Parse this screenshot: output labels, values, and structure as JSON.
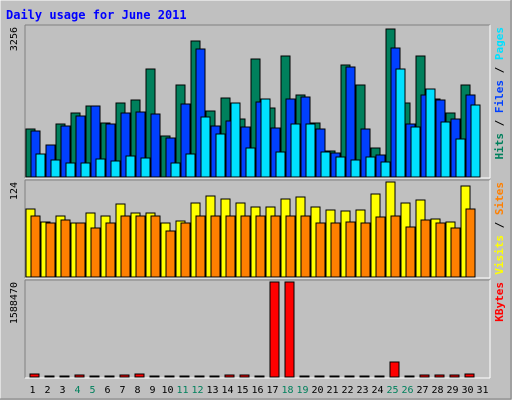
{
  "colors": {
    "background": "#c0c0c0",
    "plot_bg": "#c0c0c0",
    "title": "#0000ff",
    "hits": "#00805c",
    "files": "#0040ff",
    "pages": "#00e0ff",
    "visits": "#ffff00",
    "sites": "#ff8000",
    "kbytes": "#ff0000",
    "weekend_label": "#00805c",
    "weekday_label": "#000000"
  },
  "chart_data": {
    "type": "bar",
    "title": "Daily usage for June 2011",
    "categories": [
      "1",
      "2",
      "3",
      "4",
      "5",
      "6",
      "7",
      "8",
      "9",
      "10",
      "11",
      "12",
      "13",
      "14",
      "15",
      "16",
      "17",
      "18",
      "19",
      "20",
      "21",
      "22",
      "23",
      "24",
      "25",
      "26",
      "27",
      "28",
      "29",
      "30",
      "31"
    ],
    "weekend_days": [
      "4",
      "5",
      "11",
      "12",
      "18",
      "19",
      "25",
      "26"
    ],
    "panels": [
      {
        "id": "usage",
        "max_label": "3256",
        "ymax": 3256,
        "legend": [
          {
            "text": "Hits",
            "color": "#00805c"
          },
          {
            "text": "Files",
            "color": "#0040ff"
          },
          {
            "text": "Pages",
            "color": "#00e0ff"
          }
        ],
        "series": [
          {
            "name": "Hits",
            "color": "#00805c",
            "values": [
              1050,
              0,
              1150,
              1400,
              1550,
              1170,
              1600,
              1680,
              2350,
              900,
              2000,
              2950,
              1430,
              1720,
              1250,
              2570,
              1500,
              2630,
              1790,
              1170,
              570,
              2440,
              2000,
              630,
              3210,
              1600,
              2630,
              1700,
              1390,
              2000,
              0
            ]
          },
          {
            "name": "Files",
            "color": "#0040ff",
            "values": [
              1000,
              700,
              1110,
              1330,
              1550,
              1160,
              1390,
              1420,
              1370,
              850,
              1580,
              2770,
              1100,
              1210,
              1080,
              1630,
              1060,
              1700,
              1730,
              1050,
              530,
              2380,
              1050,
              480,
              2800,
              1150,
              1770,
              1680,
              1250,
              1780,
              0
            ]
          },
          {
            "name": "Pages",
            "color": "#00e0ff",
            "values": [
              500,
              370,
              300,
              300,
              400,
              350,
              460,
              420,
              0,
              300,
              510,
              1300,
              930,
              1600,
              620,
              1690,
              550,
              1150,
              1160,
              540,
              440,
              360,
              430,
              330,
              2340,
              1090,
              1900,
              1200,
              820,
              1560,
              0
            ]
          }
        ]
      },
      {
        "id": "visits",
        "max_label": "124",
        "ymax": 124,
        "legend": [
          {
            "text": "Visits",
            "color": "#ffff00"
          },
          {
            "text": "Sites",
            "color": "#ff8000"
          }
        ],
        "series": [
          {
            "name": "Visits",
            "color": "#ffff00",
            "values": [
              89,
              72,
              80,
              71,
              84,
              80,
              95,
              84,
              84,
              70,
              73,
              97,
              106,
              102,
              96,
              92,
              92,
              102,
              105,
              91,
              87,
              86,
              88,
              108,
              124,
              96,
              100,
              76,
              72,
              119,
              0
            ]
          },
          {
            "name": "Sites",
            "color": "#ff8000",
            "values": [
              80,
              70,
              75,
              70,
              64,
              70,
              80,
              80,
              79,
              60,
              70,
              80,
              80,
              80,
              80,
              80,
              80,
              80,
              80,
              70,
              70,
              72,
              71,
              78,
              80,
              65,
              75,
              70,
              64,
              89,
              0
            ]
          }
        ]
      },
      {
        "id": "kbytes",
        "max_label": "1588470",
        "ymax": 1588470,
        "legend": [
          {
            "text": "KBytes",
            "color": "#ff0000"
          }
        ],
        "series": [
          {
            "name": "KBytes",
            "color": "#ff0000",
            "values": [
              48000,
              14000,
              20000,
              32000,
              14000,
              20000,
              40000,
              48000,
              20000,
              20000,
              20000,
              20000,
              20000,
              32000,
              32000,
              20000,
              1588470,
              1588470,
              20000,
              20000,
              20000,
              20000,
              20000,
              20000,
              255000,
              20000,
              32000,
              32000,
              40000,
              48000,
              0
            ]
          }
        ]
      }
    ]
  }
}
